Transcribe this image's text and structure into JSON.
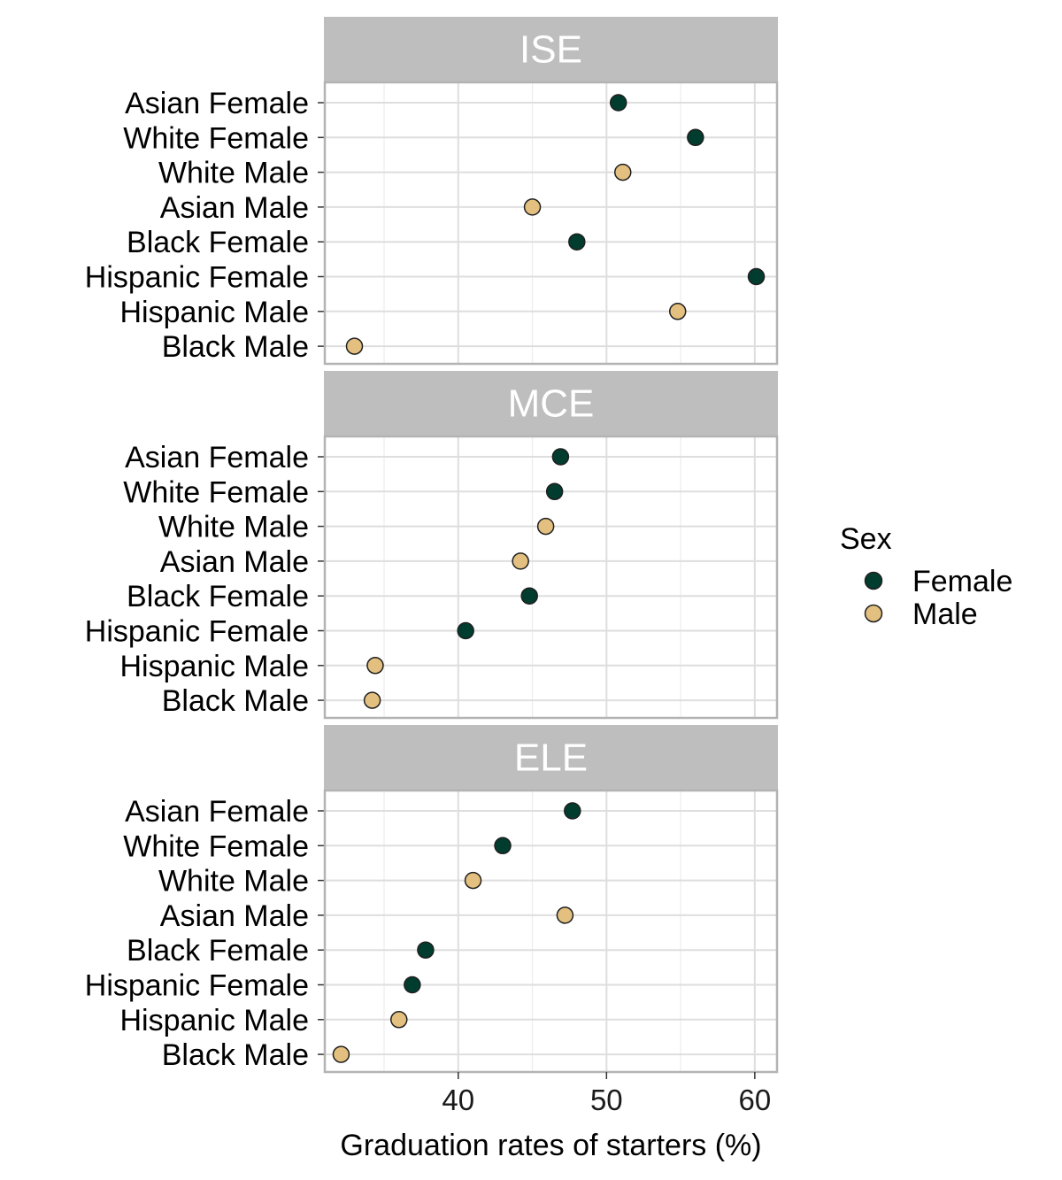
{
  "chart_data": {
    "type": "scatter",
    "xlabel": "Graduation rates of starters (%)",
    "xticks": [
      40,
      50,
      60
    ],
    "xlim": [
      31,
      61.5
    ],
    "grid": true,
    "categories": [
      "Asian Female",
      "White Female",
      "White Male",
      "Asian Male",
      "Black Female",
      "Hispanic Female",
      "Hispanic Male",
      "Black Male"
    ],
    "category_sex": [
      "Female",
      "Female",
      "Male",
      "Male",
      "Female",
      "Female",
      "Male",
      "Male"
    ],
    "legend": {
      "title": "Sex",
      "position": "right",
      "entries": [
        {
          "label": "Female",
          "color": "#003d2f"
        },
        {
          "label": "Male",
          "color": "#e3c07f"
        }
      ]
    },
    "facets": [
      {
        "label": "ISE",
        "values": [
          50.8,
          56.0,
          51.1,
          45.0,
          48.0,
          60.1,
          54.8,
          33.0
        ]
      },
      {
        "label": "MCE",
        "values": [
          46.9,
          46.5,
          45.9,
          44.2,
          44.8,
          40.5,
          34.4,
          34.2
        ]
      },
      {
        "label": "ELE",
        "values": [
          47.7,
          43.0,
          41.0,
          47.2,
          37.8,
          36.9,
          36.0,
          32.1
        ]
      }
    ]
  }
}
